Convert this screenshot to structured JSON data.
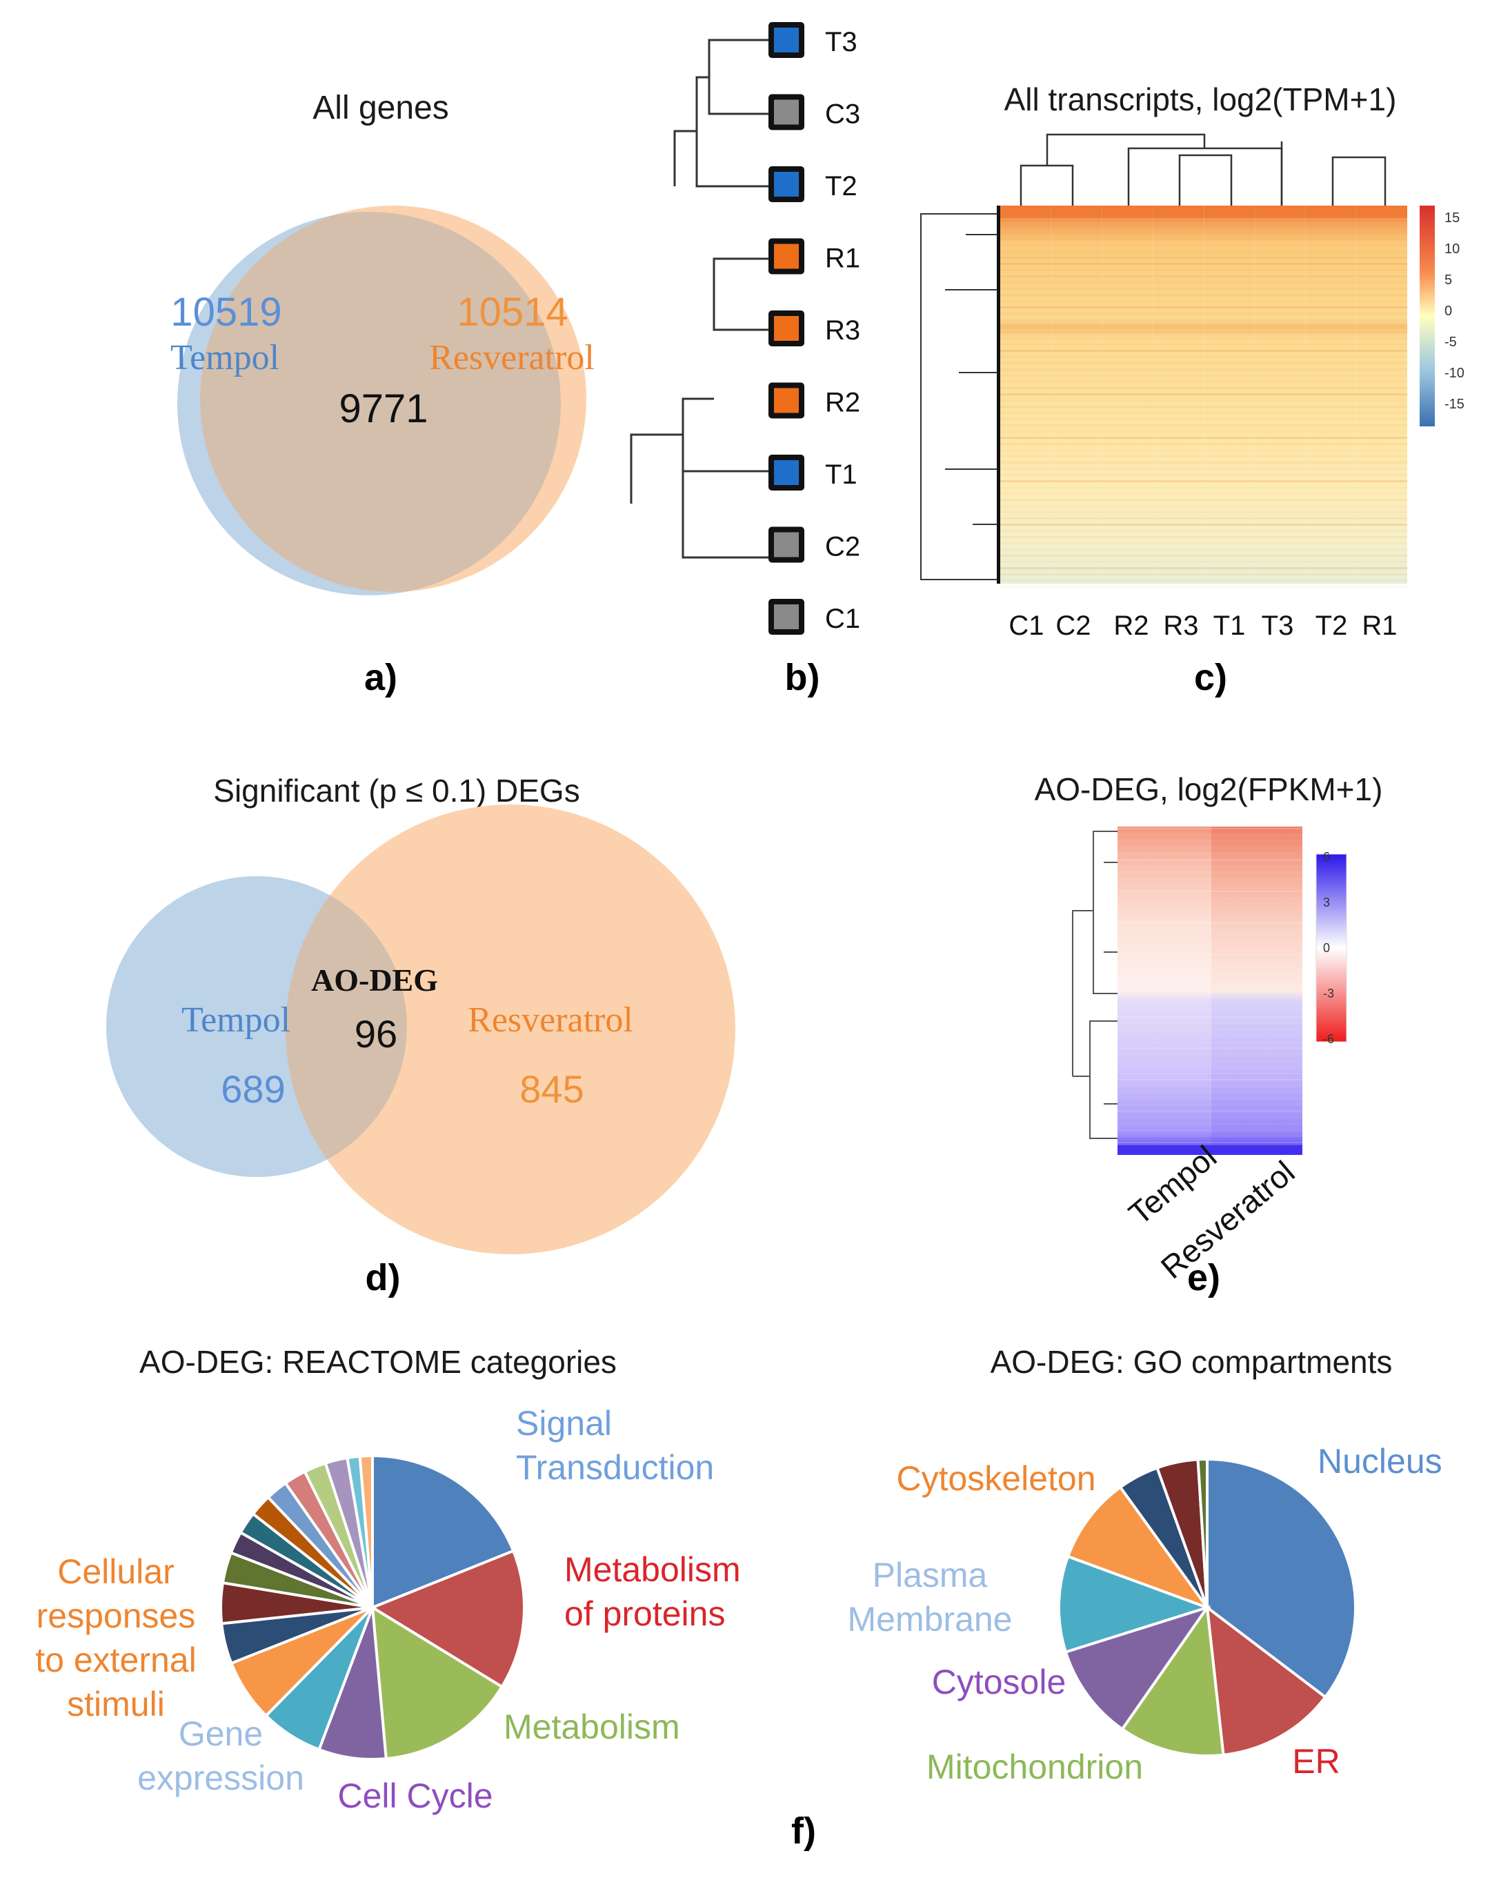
{
  "colors": {
    "tempol_blue": "#5b8fd6",
    "resv_orange": "#f0923d",
    "tempol_fill": "#bcd3e8",
    "resv_fill": "#fbd2ad",
    "overlap_fill": "#d4bfad",
    "dendro_blue": "#1e6fc9",
    "dendro_orange": "#ee6e1a",
    "dendro_gray": "#8a8a8a"
  },
  "panel_labels": {
    "a": "a)",
    "b": "b)",
    "c": "c)",
    "d": "d)",
    "e": "e)",
    "f": "f)"
  },
  "chart_data": [
    {
      "panel": "a",
      "type": "venn",
      "title": "All genes",
      "sets": [
        {
          "name": "Tempol",
          "count": "10519"
        },
        {
          "name": "Resveratrol",
          "count": "10514"
        }
      ],
      "intersection": "9771"
    },
    {
      "panel": "b",
      "type": "dendrogram",
      "leaves": [
        {
          "label": "T3",
          "group": "tempol"
        },
        {
          "label": "C3",
          "group": "control"
        },
        {
          "label": "T2",
          "group": "tempol"
        },
        {
          "label": "R1",
          "group": "resveratrol"
        },
        {
          "label": "R3",
          "group": "resveratrol"
        },
        {
          "label": "R2",
          "group": "resveratrol"
        },
        {
          "label": "T1",
          "group": "tempol"
        },
        {
          "label": "C2",
          "group": "control"
        },
        {
          "label": "C1",
          "group": "control"
        }
      ]
    },
    {
      "panel": "c",
      "type": "heatmap",
      "title": "All transcripts, log2(TPM+1)",
      "columns": [
        "C1",
        "C2",
        "R2",
        "R3",
        "T1",
        "T3",
        "T2",
        "R1"
      ],
      "colorbar_ticks": [
        "15",
        "10",
        "5",
        "0",
        "-5",
        "-10",
        "-15"
      ]
    },
    {
      "panel": "d",
      "type": "venn",
      "title": "Significant (p ≤ 0.1) DEGs",
      "overlap_label": "AO-DEG",
      "sets": [
        {
          "name": "Tempol",
          "count": "689"
        },
        {
          "name": "Resveratrol",
          "count": "845"
        }
      ],
      "intersection": "96"
    },
    {
      "panel": "e",
      "type": "heatmap",
      "title": "AO-DEG, log2(FPKM+1)",
      "columns": [
        "Tempol",
        "Resveratrol"
      ],
      "colorbar_ticks": [
        "6",
        "3",
        "0",
        "-3",
        "-6"
      ]
    },
    {
      "panel": "f1",
      "type": "pie",
      "title": "AO-DEG: REACTOME  categories",
      "slices": [
        {
          "label": "Signal Transduction",
          "label_lines": [
            "Signal",
            "Transduction"
          ],
          "value": 18.5,
          "color": "#4f81bd",
          "text_color": "#6fa0dc"
        },
        {
          "label": "Metabolism of proteins",
          "label_lines": [
            "Metabolism",
            "of proteins"
          ],
          "value": 14.5,
          "color": "#c0504d",
          "text_color": "#d9252b"
        },
        {
          "label": "Metabolism",
          "label_lines": [
            "Metabolism"
          ],
          "value": 14.5,
          "color": "#9bbb59",
          "text_color": "#8db857"
        },
        {
          "label": "Cell Cycle",
          "label_lines": [
            "Cell Cycle"
          ],
          "value": 7,
          "color": "#8064a2",
          "text_color": "#8e4dbf"
        },
        {
          "label": "Gene expression",
          "label_lines": [
            "Gene",
            "expression"
          ],
          "value": 6.5,
          "color": "#4bacc6",
          "text_color": "#9dbde4"
        },
        {
          "label": "Cellular responses to external stimuli",
          "label_lines": [
            "Cellular",
            "responses",
            "to external",
            "stimuli"
          ],
          "value": 6.5,
          "color": "#f79646",
          "text_color": "#ee8530"
        },
        {
          "label": "",
          "label_lines": [],
          "value": 4.2,
          "color": "#2c4d75",
          "text_color": ""
        },
        {
          "label": "",
          "label_lines": [],
          "value": 4.2,
          "color": "#772c2a",
          "text_color": ""
        },
        {
          "label": "",
          "label_lines": [],
          "value": 3.2,
          "color": "#5f7530",
          "text_color": ""
        },
        {
          "label": "",
          "label_lines": [],
          "value": 2.3,
          "color": "#4d3b62",
          "text_color": ""
        },
        {
          "label": "",
          "label_lines": [],
          "value": 2.3,
          "color": "#276a7c",
          "text_color": ""
        },
        {
          "label": "",
          "label_lines": [],
          "value": 2.3,
          "color": "#b65708",
          "text_color": ""
        },
        {
          "label": "",
          "label_lines": [],
          "value": 2.3,
          "color": "#729aca",
          "text_color": ""
        },
        {
          "label": "",
          "label_lines": [],
          "value": 2.3,
          "color": "#d47d7b",
          "text_color": ""
        },
        {
          "label": "",
          "label_lines": [],
          "value": 2.3,
          "color": "#b3cc82",
          "text_color": ""
        },
        {
          "label": "",
          "label_lines": [],
          "value": 2.3,
          "color": "#a794be",
          "text_color": ""
        },
        {
          "label": "",
          "label_lines": [],
          "value": 1.3,
          "color": "#6fc2d6",
          "text_color": ""
        },
        {
          "label": "",
          "label_lines": [],
          "value": 1.3,
          "color": "#f9b074",
          "text_color": ""
        }
      ]
    },
    {
      "panel": "f2",
      "type": "pie",
      "title": "AO-DEG: GO  compartments",
      "slices": [
        {
          "label": "Nucleus",
          "label_lines": [
            "Nucleus"
          ],
          "value": 35.5,
          "color": "#4f81bd",
          "text_color": "#5d8fcf"
        },
        {
          "label": "ER",
          "label_lines": [
            "ER"
          ],
          "value": 13,
          "color": "#c0504d",
          "text_color": "#d9252b"
        },
        {
          "label": "Mitochondrion",
          "label_lines": [
            "Mitochondrion"
          ],
          "value": 11.5,
          "color": "#9bbb59",
          "text_color": "#8db857"
        },
        {
          "label": "Cytosole",
          "label_lines": [
            "Cytosole"
          ],
          "value": 10.5,
          "color": "#8064a2",
          "text_color": "#8e4dbf"
        },
        {
          "label": "Plasma Membrane",
          "label_lines": [
            "Plasma",
            "Membrane"
          ],
          "value": 10.5,
          "color": "#4bacc6",
          "text_color": "#9dbde4"
        },
        {
          "label": "Cytoskeleton",
          "label_lines": [
            "Cytoskeleton"
          ],
          "value": 9.5,
          "color": "#f79646",
          "text_color": "#ee8530"
        },
        {
          "label": "",
          "label_lines": [],
          "value": 4.5,
          "color": "#2c4d75",
          "text_color": ""
        },
        {
          "label": "",
          "label_lines": [],
          "value": 4.5,
          "color": "#772c2a",
          "text_color": ""
        },
        {
          "label": "",
          "label_lines": [],
          "value": 1,
          "color": "#5f7530",
          "text_color": ""
        }
      ]
    }
  ]
}
